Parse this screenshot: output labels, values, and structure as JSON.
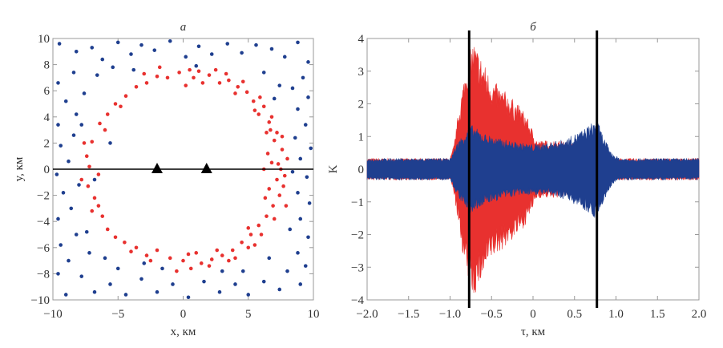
{
  "chart_data": [
    {
      "type": "scatter",
      "title": "а",
      "xlabel": "x, км",
      "ylabel": "y, км",
      "xlim": [
        -10,
        10
      ],
      "ylim": [
        -10,
        10
      ],
      "xticks": [
        "−10",
        "−5",
        "0",
        "5",
        "10"
      ],
      "xtick_values": [
        -10,
        -5,
        0,
        5,
        10
      ],
      "yticks": [
        "−10",
        "−8",
        "−6",
        "−4",
        "−2",
        "0",
        "2",
        "4",
        "6",
        "8",
        "10"
      ],
      "ytick_values": [
        -10,
        -8,
        -6,
        -4,
        -2,
        0,
        2,
        4,
        6,
        8,
        10
      ],
      "grid": false,
      "colors": {
        "red": "#e8312f",
        "blue": "#1f3f8f"
      },
      "reference_line_y": 0,
      "triangle_markers": [
        [
          -2,
          0
        ],
        [
          1.8,
          0
        ]
      ],
      "series": [
        {
          "color": "#e8312f",
          "points": [
            [
              7.5,
              0
            ],
            [
              6.8,
              0.5
            ],
            [
              7.2,
              -0.8
            ],
            [
              6.5,
              1.2
            ],
            [
              7.6,
              1.5
            ],
            [
              7.0,
              2.2
            ],
            [
              6.4,
              2.8
            ],
            [
              7.2,
              2.8
            ],
            [
              6.6,
              3.6
            ],
            [
              5.8,
              4.2
            ],
            [
              6.2,
              4.8
            ],
            [
              5.4,
              5.2
            ],
            [
              4.9,
              5.9
            ],
            [
              4.2,
              6.3
            ],
            [
              3.5,
              6.8
            ],
            [
              2.8,
              6.6
            ],
            [
              2.0,
              7.2
            ],
            [
              1.2,
              7.5
            ],
            [
              0.5,
              7.6
            ],
            [
              -0.3,
              7.4
            ],
            [
              -1.2,
              7.0
            ],
            [
              -2.0,
              7.1
            ],
            [
              -2.8,
              6.6
            ],
            [
              -3.6,
              6.3
            ],
            [
              -4.4,
              5.6
            ],
            [
              -5.2,
              5.0
            ],
            [
              -5.8,
              4.2
            ],
            [
              -6.4,
              3.5
            ],
            [
              -7.0,
              2.1
            ],
            [
              -7.4,
              1.0
            ],
            [
              -7.2,
              0.2
            ],
            [
              -6.5,
              -0.4
            ],
            [
              -7.3,
              -1.3
            ],
            [
              -6.8,
              -2.2
            ],
            [
              -7.0,
              -3.2
            ],
            [
              -6.2,
              -3.6
            ],
            [
              -5.8,
              -4.6
            ],
            [
              -5.2,
              -5.2
            ],
            [
              -4.5,
              -5.6
            ],
            [
              -3.6,
              -6.0
            ],
            [
              -2.8,
              -6.6
            ],
            [
              -2.0,
              -6.2
            ],
            [
              -1.0,
              -6.8
            ],
            [
              0.0,
              -7.0
            ],
            [
              0.6,
              -7.6
            ],
            [
              1.4,
              -7.2
            ],
            [
              2.2,
              -6.9
            ],
            [
              3.0,
              -6.6
            ],
            [
              3.8,
              -6.2
            ],
            [
              4.5,
              -5.6
            ],
            [
              5.2,
              -5.0
            ],
            [
              5.8,
              -4.3
            ],
            [
              6.4,
              -3.6
            ],
            [
              6.9,
              -2.8
            ],
            [
              7.4,
              -2.0
            ],
            [
              7.8,
              -0.5
            ],
            [
              8.0,
              0.8
            ],
            [
              7.6,
              2.5
            ],
            [
              6.8,
              4.0
            ],
            [
              5.9,
              5.5
            ],
            [
              4.6,
              6.7
            ],
            [
              2.5,
              7.6
            ],
            [
              3.3,
              7.3
            ],
            [
              1.5,
              6.6
            ],
            [
              0.8,
              7.0
            ],
            [
              5.0,
              -6.0
            ],
            [
              3.5,
              -7.0
            ],
            [
              2.0,
              -7.4
            ],
            [
              1.0,
              -6.4
            ],
            [
              6.0,
              -5.0
            ],
            [
              7.0,
              -3.8
            ],
            [
              7.7,
              -1.3
            ],
            [
              6.3,
              -2.2
            ],
            [
              6.2,
              0.0
            ],
            [
              7.9,
              -2.8
            ],
            [
              4.0,
              -6.8
            ],
            [
              5.5,
              -5.8
            ],
            [
              -0.5,
              -7.8
            ],
            [
              -2.5,
              -7.0
            ],
            [
              -4.0,
              -6.3
            ],
            [
              -6.5,
              -2.8
            ],
            [
              -7.8,
              -0.8
            ],
            [
              -7.6,
              2.0
            ],
            [
              -6.0,
              3.0
            ],
            [
              -4.8,
              4.8
            ],
            [
              -3.0,
              7.3
            ],
            [
              -1.8,
              7.8
            ],
            [
              0.2,
              6.4
            ],
            [
              4.0,
              5.8
            ],
            [
              5.5,
              4.5
            ],
            [
              6.7,
              3.0
            ],
            [
              7.3,
              0.4
            ],
            [
              6.6,
              -1.5
            ],
            [
              5.0,
              -4.5
            ],
            [
              2.6,
              -6.2
            ],
            [
              0.4,
              -6.5
            ]
          ]
        },
        {
          "color": "#1f3f8f",
          "points": [
            [
              -9.5,
              9.6
            ],
            [
              -8.2,
              9.0
            ],
            [
              -7.0,
              9.3
            ],
            [
              -6.2,
              8.4
            ],
            [
              -5.0,
              9.7
            ],
            [
              -4.0,
              8.8
            ],
            [
              -3.2,
              9.5
            ],
            [
              -2.2,
              9.1
            ],
            [
              -1.0,
              9.8
            ],
            [
              0.2,
              8.6
            ],
            [
              1.2,
              9.4
            ],
            [
              2.2,
              8.8
            ],
            [
              3.4,
              9.6
            ],
            [
              4.5,
              8.9
            ],
            [
              5.6,
              9.5
            ],
            [
              6.8,
              9.2
            ],
            [
              7.8,
              8.6
            ],
            [
              8.8,
              9.7
            ],
            [
              9.6,
              8.2
            ],
            [
              9.2,
              7.0
            ],
            [
              8.4,
              6.2
            ],
            [
              9.6,
              5.5
            ],
            [
              8.8,
              4.6
            ],
            [
              9.4,
              3.4
            ],
            [
              8.6,
              2.4
            ],
            [
              9.8,
              1.6
            ],
            [
              9.0,
              0.8
            ],
            [
              9.5,
              -0.6
            ],
            [
              8.8,
              -1.8
            ],
            [
              9.7,
              -2.6
            ],
            [
              9.0,
              -3.8
            ],
            [
              8.2,
              -4.6
            ],
            [
              9.6,
              -5.2
            ],
            [
              8.8,
              -6.4
            ],
            [
              9.4,
              -7.4
            ],
            [
              8.0,
              -7.8
            ],
            [
              9.0,
              -8.8
            ],
            [
              7.4,
              -9.2
            ],
            [
              6.2,
              -8.6
            ],
            [
              5.0,
              -9.6
            ],
            [
              4.0,
              -8.8
            ],
            [
              2.8,
              -9.4
            ],
            [
              1.6,
              -8.6
            ],
            [
              0.4,
              -9.8
            ],
            [
              -0.8,
              -8.8
            ],
            [
              -2.0,
              -9.4
            ],
            [
              -3.2,
              -8.4
            ],
            [
              -4.4,
              -9.6
            ],
            [
              -5.6,
              -8.8
            ],
            [
              -6.8,
              -9.4
            ],
            [
              -7.8,
              -8.2
            ],
            [
              -9.0,
              -9.6
            ],
            [
              -9.6,
              -8.0
            ],
            [
              -8.8,
              -7.0
            ],
            [
              -9.4,
              -5.8
            ],
            [
              -8.2,
              -5.0
            ],
            [
              -9.6,
              -3.8
            ],
            [
              -8.6,
              -3.0
            ],
            [
              -9.2,
              -1.8
            ],
            [
              -8.0,
              -1.2
            ],
            [
              -9.7,
              -0.4
            ],
            [
              -8.8,
              0.6
            ],
            [
              -9.4,
              1.8
            ],
            [
              -8.4,
              2.6
            ],
            [
              -9.6,
              3.4
            ],
            [
              -8.2,
              4.2
            ],
            [
              -9.0,
              5.2
            ],
            [
              -7.6,
              5.8
            ],
            [
              -9.6,
              6.6
            ],
            [
              -8.4,
              7.4
            ],
            [
              -6.6,
              7.2
            ],
            [
              -5.4,
              7.8
            ],
            [
              -3.8,
              7.6
            ],
            [
              6.2,
              7.4
            ],
            [
              7.4,
              6.4
            ],
            [
              7.0,
              5.4
            ],
            [
              -7.2,
              -6.4
            ],
            [
              -6.0,
              -6.8
            ],
            [
              -5.0,
              -7.6
            ],
            [
              4.6,
              -7.8
            ],
            [
              6.6,
              -6.8
            ],
            [
              3.0,
              -7.8
            ],
            [
              -1.6,
              -7.6
            ],
            [
              -7.8,
              3.4
            ],
            [
              -7.4,
              -4.8
            ],
            [
              8.4,
              -0.2
            ],
            [
              -3.0,
              -7.2
            ],
            [
              1.0,
              7.9
            ],
            [
              -6.8,
              -0.8
            ],
            [
              -5.6,
              2.0
            ]
          ]
        }
      ]
    },
    {
      "type": "line",
      "title": "б",
      "xlabel": "τ, км",
      "ylabel": "K",
      "xlim": [
        -2.0,
        2.0
      ],
      "ylim": [
        -4,
        4
      ],
      "xticks": [
        "−2.0",
        "−1.5",
        "−1.0",
        "−0.5",
        "0",
        "0.5",
        "1.0",
        "1.5",
        "2.0"
      ],
      "xtick_values": [
        -2.0,
        -1.5,
        -1.0,
        -0.5,
        0,
        0.5,
        1.0,
        1.5,
        2.0
      ],
      "yticks": [
        "−4",
        "−3",
        "−2",
        "−1",
        "0",
        "1",
        "2",
        "3",
        "4"
      ],
      "ytick_values": [
        -4,
        -3,
        -2,
        -1,
        0,
        1,
        2,
        3,
        4
      ],
      "grid": false,
      "vertical_lines": [
        -0.77,
        0.77
      ],
      "series": [
        {
          "color": "#e8312f",
          "envelope_tau": [
            -2.0,
            -1.0,
            -0.95,
            -0.9,
            -0.8,
            -0.72,
            -0.6,
            -0.5,
            -0.3,
            -0.1,
            0.05,
            0.3,
            0.6,
            0.8,
            0.9,
            1.0,
            2.0
          ],
          "envelope_amplitude": [
            0.3,
            0.3,
            0.7,
            1.6,
            3.0,
            3.6,
            3.0,
            2.5,
            2.1,
            1.6,
            0.8,
            0.8,
            0.7,
            0.6,
            0.4,
            0.3,
            0.3
          ]
        },
        {
          "color": "#1f3f8f",
          "envelope_tau": [
            -2.0,
            -1.0,
            -0.9,
            -0.75,
            -0.6,
            -0.4,
            -0.2,
            0.0,
            0.2,
            0.4,
            0.6,
            0.77,
            0.85,
            0.95,
            1.05,
            2.0
          ],
          "envelope_amplitude": [
            0.3,
            0.3,
            0.8,
            1.25,
            1.0,
            0.85,
            0.75,
            0.7,
            0.75,
            0.85,
            1.1,
            1.4,
            0.9,
            0.45,
            0.3,
            0.3
          ]
        }
      ]
    }
  ]
}
